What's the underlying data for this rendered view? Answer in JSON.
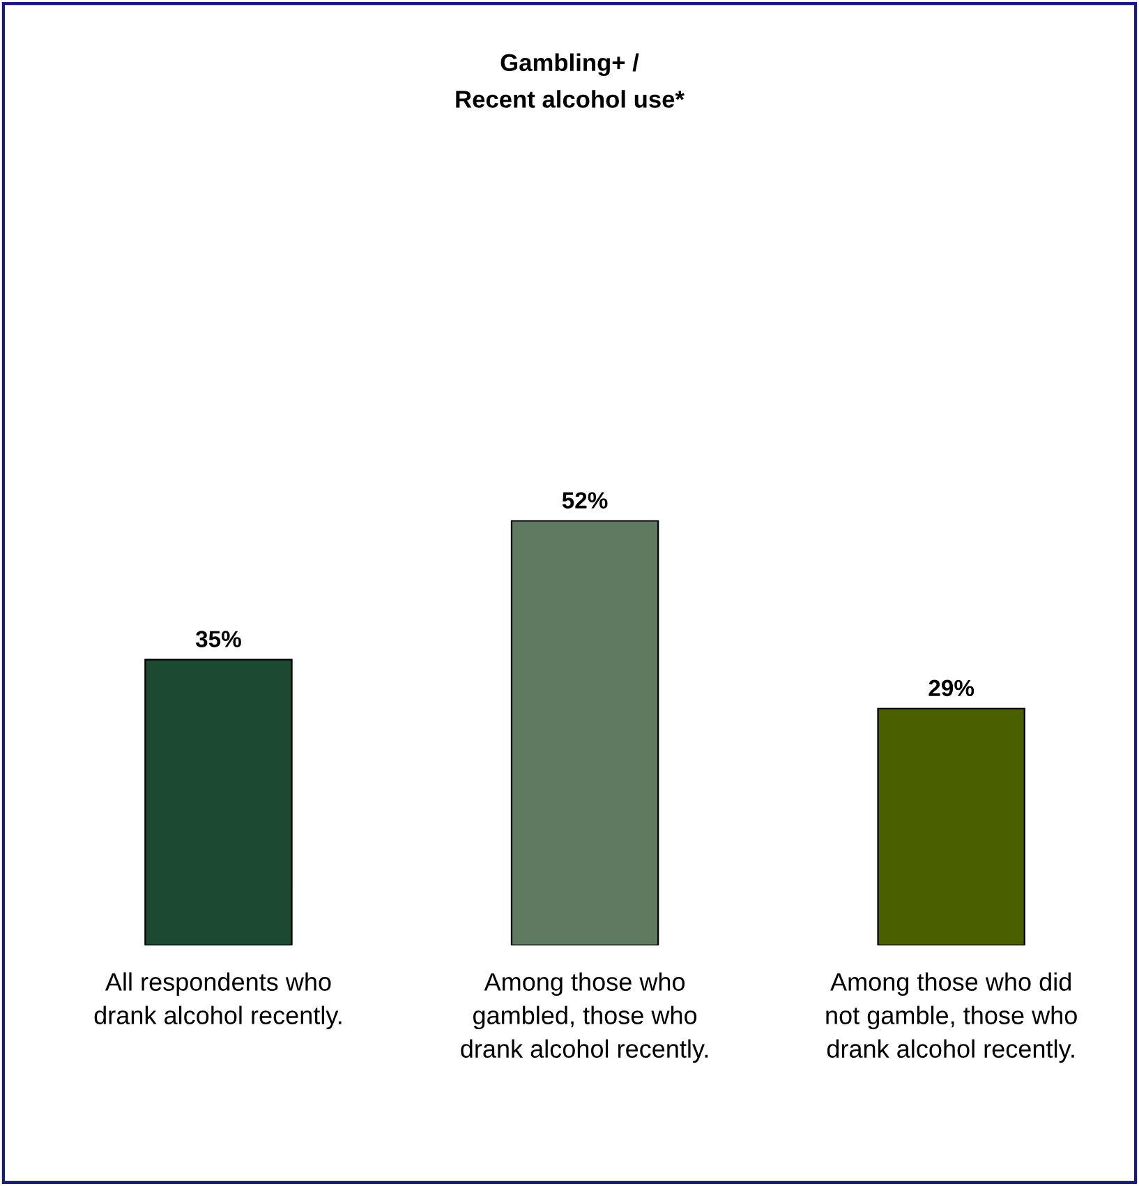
{
  "chart_data": {
    "type": "bar",
    "title": "Gambling+ /\nRecent alcohol use*",
    "categories": [
      "All respondents who\ndrank alcohol recently.",
      "Among those who\ngambled, those who\ndrank alcohol recently.",
      "Among those who did\nnot gamble, those who\ndrank alcohol recently."
    ],
    "values": [
      35,
      52,
      29
    ],
    "colors": [
      "#1b4a31",
      "#5f7a60",
      "#4a6000"
    ],
    "value_labels": [
      "35%",
      "52%",
      "29%"
    ],
    "grid": false,
    "legend": false
  }
}
